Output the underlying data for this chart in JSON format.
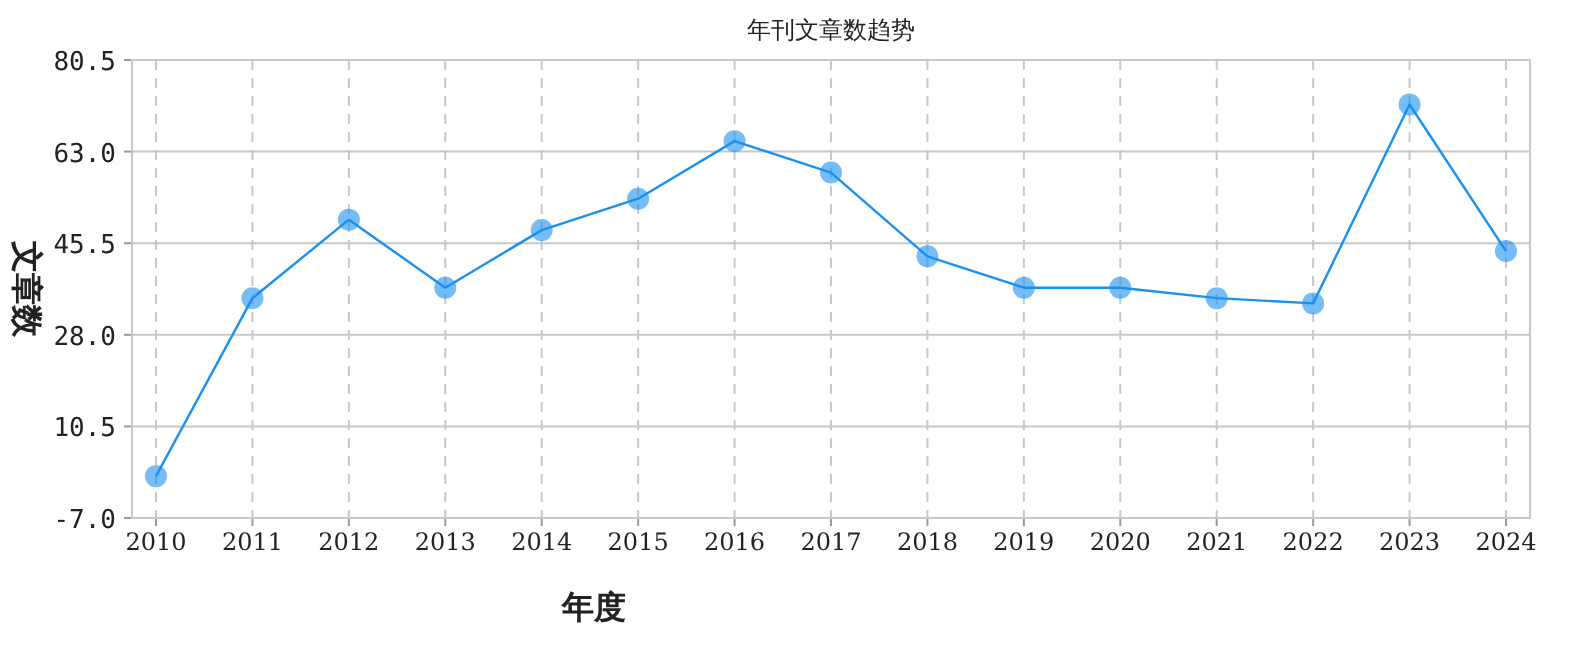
{
  "chart_data": {
    "type": "line",
    "title": "年刊文章数趋势",
    "xlabel": "年度",
    "ylabel": "文章数",
    "categories": [
      "2010",
      "2011",
      "2012",
      "2013",
      "2014",
      "2015",
      "2016",
      "2017",
      "2018",
      "2019",
      "2020",
      "2021",
      "2022",
      "2023",
      "2024"
    ],
    "series": [
      {
        "color": "#1a90f0",
        "values": [
          1,
          35,
          50,
          37,
          48,
          54,
          65,
          59,
          43,
          37,
          37,
          35,
          34,
          72,
          44
        ]
      }
    ],
    "ylim": [
      -7.0,
      80.5
    ],
    "yticks": [
      {
        "value": -7.0,
        "label": "-7.0"
      },
      {
        "value": 10.5,
        "label": "10.5"
      },
      {
        "value": 28.0,
        "label": "28.0"
      },
      {
        "value": 45.5,
        "label": "45.5"
      },
      {
        "value": 63.0,
        "label": "63.0"
      },
      {
        "value": 80.5,
        "label": "80.5"
      }
    ],
    "grid": true,
    "marker": "circle",
    "line_style": "solid"
  }
}
